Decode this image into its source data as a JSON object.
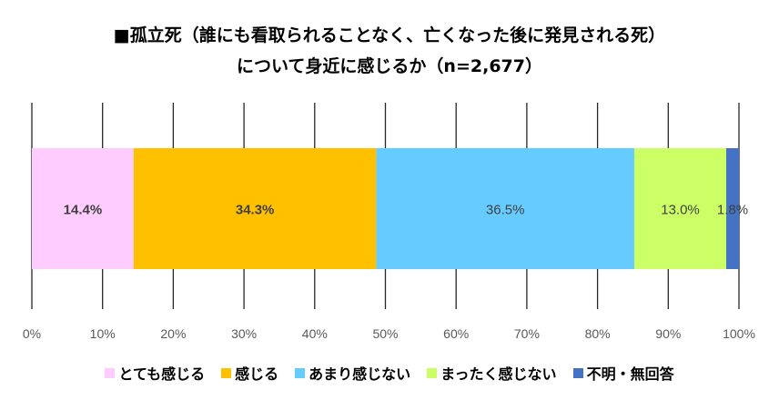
{
  "chart_data": {
    "type": "bar",
    "orientation": "horizontal-stacked-100",
    "title_line1": "■孤立死（誰にも看取られることなく、亡くなった後に発見される死）",
    "title_line2": "について身近に感じるか（n=2,677）",
    "xlim": [
      0,
      100
    ],
    "xticks": [
      "0%",
      "10%",
      "20%",
      "30%",
      "40%",
      "50%",
      "60%",
      "70%",
      "80%",
      "90%",
      "100%"
    ],
    "grid": "vertical",
    "legend_position": "bottom",
    "series": [
      {
        "name": "とても感じる",
        "value": 14.4,
        "label": "14.4%",
        "color": "#FFCCFF",
        "label_bold": true
      },
      {
        "name": "感じる",
        "value": 34.3,
        "label": "34.3%",
        "color": "#FFC000",
        "label_bold": true
      },
      {
        "name": "あまり感じない",
        "value": 36.5,
        "label": "36.5%",
        "color": "#66CCFF",
        "label_bold": false
      },
      {
        "name": "まったく感じない",
        "value": 13.0,
        "label": "13.0%",
        "color": "#CCFF66",
        "label_bold": false
      },
      {
        "name": "不明・無回答",
        "value": 1.8,
        "label": "1.8%",
        "color": "#4472C4",
        "label_bold": false
      }
    ]
  }
}
